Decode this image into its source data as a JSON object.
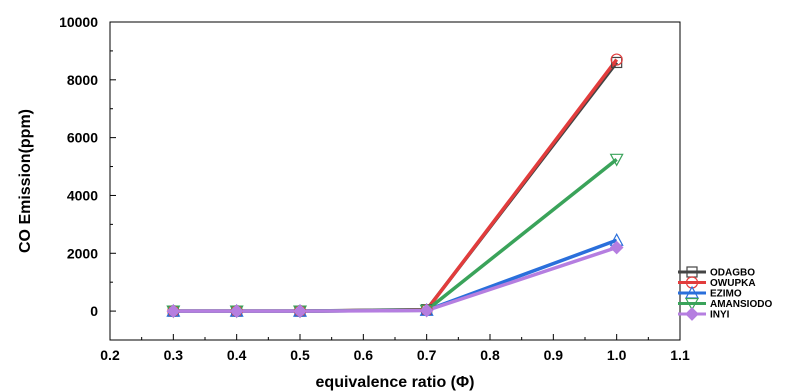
{
  "chart_data": {
    "type": "line",
    "xlabel": "equivalence ratio (Φ)",
    "ylabel": "CO Emission(ppm)",
    "xlim": [
      0.2,
      1.1
    ],
    "ylim": [
      -1000,
      10000
    ],
    "xticks": [
      "0.2",
      "0.3",
      "0.4",
      "0.5",
      "0.6",
      "0.7",
      "0.8",
      "0.9",
      "1.0",
      "1.1"
    ],
    "yticks": [
      "0",
      "2000",
      "4000",
      "6000",
      "8000",
      "10000"
    ],
    "x": [
      0.3,
      0.4,
      0.5,
      0.7,
      1.0
    ],
    "legend_position": "bottom-right",
    "grid": false,
    "series": [
      {
        "name": "ODAGBO",
        "values": [
          0,
          0,
          0,
          50,
          8600
        ],
        "color": "#444444",
        "marker": "square"
      },
      {
        "name": "OWUPKA",
        "values": [
          0,
          0,
          0,
          40,
          8700
        ],
        "color": "#e23c3c",
        "marker": "circle"
      },
      {
        "name": "EZIMO",
        "values": [
          0,
          0,
          0,
          30,
          2450
        ],
        "color": "#2a6fdb",
        "marker": "triangle-up"
      },
      {
        "name": "AMANSIODO",
        "values": [
          0,
          0,
          0,
          30,
          5250
        ],
        "color": "#3aa35a",
        "marker": "triangle-down"
      },
      {
        "name": "INYI",
        "values": [
          0,
          0,
          0,
          20,
          2200
        ],
        "color": "#b57ee0",
        "marker": "diamond"
      }
    ]
  }
}
